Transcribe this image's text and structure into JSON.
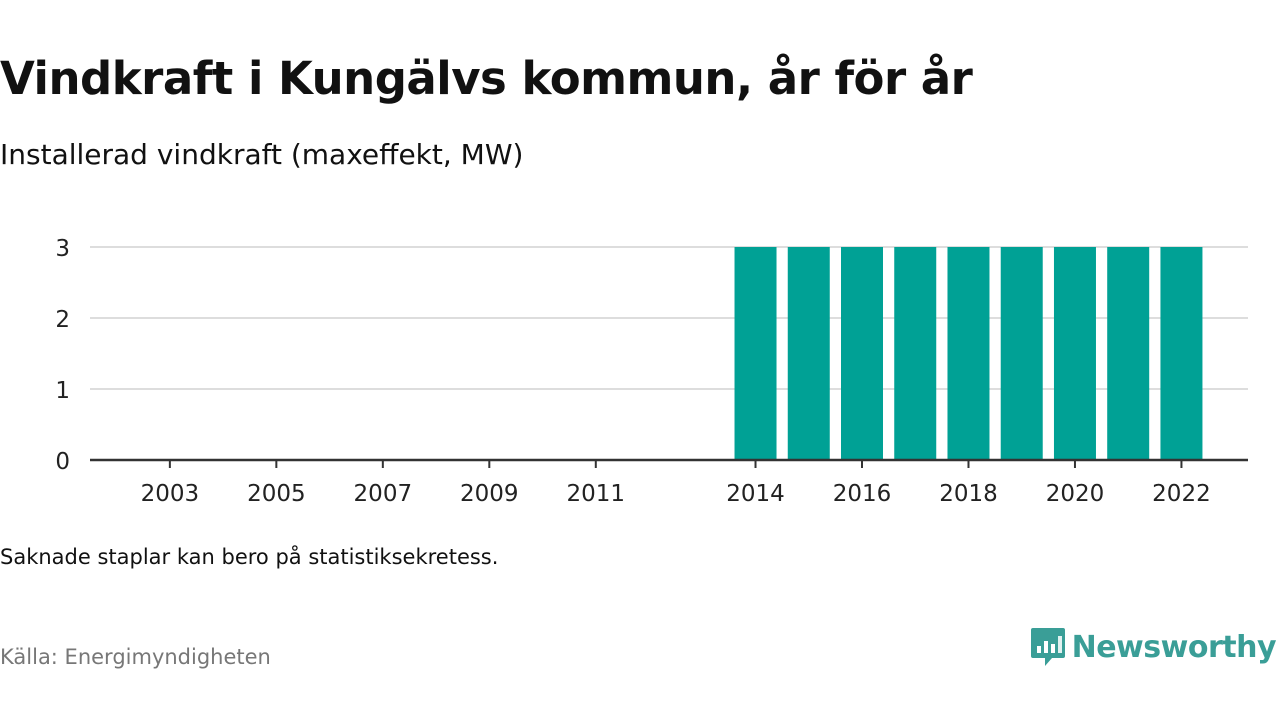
{
  "title": "Vindkraft i Kungälvs kommun, år för år",
  "subtitle": "Installerad vindkraft (maxeffekt, MW)",
  "note": "Saknade staplar kan bero på statistiksekretess.",
  "source": "Källa: Energimyndigheten",
  "brand": {
    "name": "Newsworthy",
    "icon": "newsworthy-logo-icon",
    "color": "#3a9e97"
  },
  "colors": {
    "bar": "#00a195",
    "grid": "#dddddd",
    "axis": "#333333"
  },
  "chart_data": {
    "type": "bar",
    "title": "Vindkraft i Kungälvs kommun, år för år",
    "subtitle": "Installerad vindkraft (maxeffekt, MW)",
    "x": [
      2002,
      2003,
      2004,
      2005,
      2006,
      2007,
      2008,
      2009,
      2010,
      2011,
      2012,
      2013,
      2014,
      2015,
      2016,
      2017,
      2018,
      2019,
      2020,
      2021,
      2022
    ],
    "values": [
      0,
      0,
      0,
      0,
      0,
      0,
      0,
      0,
      0,
      0,
      null,
      null,
      3,
      3,
      3,
      3,
      3,
      3,
      3,
      3,
      3
    ],
    "xticks": [
      2003,
      2005,
      2007,
      2009,
      2011,
      2014,
      2016,
      2018,
      2020,
      2022
    ],
    "yticks": [
      0,
      1,
      2,
      3
    ],
    "ylim": [
      0,
      3
    ],
    "xlabel": "",
    "ylabel": "",
    "grid": true,
    "legend": "none"
  }
}
